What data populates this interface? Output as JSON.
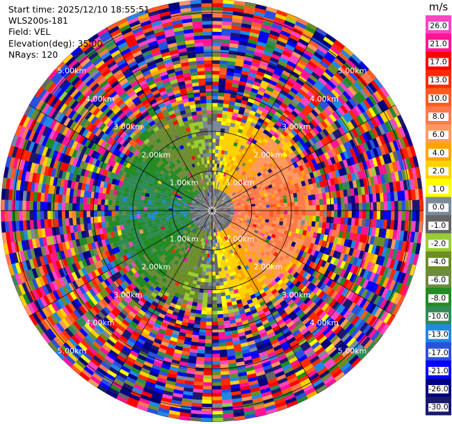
{
  "header": {
    "start_time": "Start time: 2025/12/10 18:55:51",
    "instrument": "WLS200s-181",
    "field": "Field: VEL",
    "elevation": "Elevation(deg): 35.00",
    "nrays": "NRays: 120"
  },
  "chart_data": {
    "type": "heatmap",
    "projection": "polar-ppi",
    "field": "VEL",
    "nrays": 120,
    "elevation_deg": 35.0,
    "range_rings_km": [
      1,
      2,
      3,
      4,
      5
    ],
    "ring_labels": [
      "1.00km",
      "2.00km",
      "3.00km",
      "4.00km",
      "5.00km"
    ],
    "max_range_km": 6.0,
    "colorbar": {
      "title": "m/s",
      "ticks": [
        "26.0",
        "21.0",
        "17.0",
        "13.0",
        "10.0",
        "8.0",
        "6.0",
        "4.0",
        "2.0",
        "1.0",
        "0.0",
        "-1.0",
        "-2.0",
        "-4.0",
        "-6.0",
        "-8.0",
        "-10.0",
        "-13.0",
        "-17.0",
        "-21.0",
        "-26.0",
        "-30.0"
      ],
      "bins": [
        {
          "min": 26,
          "max": 30,
          "color": "#ff44c4"
        },
        {
          "min": 21,
          "max": 26,
          "color": "#ff1493"
        },
        {
          "min": 17,
          "max": 21,
          "color": "#ff0000"
        },
        {
          "min": 13,
          "max": 17,
          "color": "#ff2a00"
        },
        {
          "min": 10,
          "max": 13,
          "color": "#ff5a1e"
        },
        {
          "min": 8,
          "max": 10,
          "color": "#ff7a4a"
        },
        {
          "min": 6,
          "max": 8,
          "color": "#ff9a5e"
        },
        {
          "min": 4,
          "max": 6,
          "color": "#ffa500"
        },
        {
          "min": 2,
          "max": 4,
          "color": "#ffd200"
        },
        {
          "min": 1,
          "max": 2,
          "color": "#ffff00"
        },
        {
          "min": 0,
          "max": 1,
          "color": "#7a8a9a"
        },
        {
          "min": -1,
          "max": 0,
          "color": "#666666"
        },
        {
          "min": -2,
          "max": -1,
          "color": "#9acd32"
        },
        {
          "min": -4,
          "max": -2,
          "color": "#6b8e23"
        },
        {
          "min": -6,
          "max": -4,
          "color": "#6e8b3d"
        },
        {
          "min": -8,
          "max": -6,
          "color": "#228b22"
        },
        {
          "min": -10,
          "max": -8,
          "color": "#2e8b57"
        },
        {
          "min": -13,
          "max": -10,
          "color": "#1e88e5"
        },
        {
          "min": -17,
          "max": -13,
          "color": "#2950e0"
        },
        {
          "min": -21,
          "max": -17,
          "color": "#0000ff"
        },
        {
          "min": -26,
          "max": -21,
          "color": "#000080"
        },
        {
          "min": -30,
          "max": -26,
          "color": "#191970"
        }
      ]
    }
  }
}
